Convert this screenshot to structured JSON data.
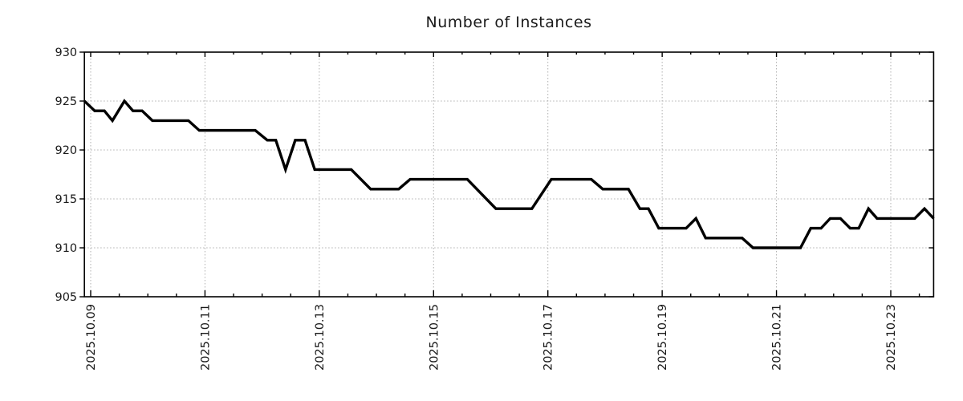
{
  "chart_data": {
    "type": "line",
    "title": "Number of Instances",
    "xlabel": "",
    "ylabel": "",
    "x_tick_labels": [
      "2025.10.09",
      "2025.10.11",
      "2025.10.13",
      "2025.10.15",
      "2025.10.17",
      "2025.10.19",
      "2025.10.21",
      "2025.10.23"
    ],
    "x_tick_days": [
      0,
      2,
      4,
      6,
      8,
      10,
      12,
      14
    ],
    "x_minor_step_days": 0.5,
    "xlim_days": [
      -0.11,
      14.75
    ],
    "y_ticks": [
      905,
      910,
      915,
      920,
      925,
      930
    ],
    "ylim": [
      905,
      930
    ],
    "grid": "dotted",
    "legend_position": "none",
    "colors": {
      "line": "#000000",
      "grid": "#b0b0b0",
      "text": "#1a1a1a",
      "background": "#ffffff"
    },
    "series": [
      {
        "name": "Number of Instances",
        "points_format": "[days_since_2025.10.09, value]",
        "points": [
          [
            -0.11,
            925
          ],
          [
            0.07,
            924
          ],
          [
            0.24,
            924
          ],
          [
            0.38,
            923
          ],
          [
            0.59,
            925
          ],
          [
            0.74,
            924
          ],
          [
            0.9,
            924
          ],
          [
            1.08,
            923
          ],
          [
            1.71,
            923
          ],
          [
            1.9,
            922
          ],
          [
            2.88,
            922
          ],
          [
            3.09,
            921
          ],
          [
            3.24,
            921
          ],
          [
            3.41,
            918
          ],
          [
            3.58,
            921
          ],
          [
            3.75,
            921
          ],
          [
            3.92,
            918
          ],
          [
            4.56,
            918
          ],
          [
            4.9,
            916
          ],
          [
            5.39,
            916
          ],
          [
            5.59,
            917
          ],
          [
            6.59,
            917
          ],
          [
            7.09,
            914
          ],
          [
            7.72,
            914
          ],
          [
            8.06,
            917
          ],
          [
            8.76,
            917
          ],
          [
            8.96,
            916
          ],
          [
            9.41,
            916
          ],
          [
            9.61,
            914
          ],
          [
            9.76,
            914
          ],
          [
            9.94,
            912
          ],
          [
            10.42,
            912
          ],
          [
            10.59,
            913
          ],
          [
            10.76,
            911
          ],
          [
            11.4,
            911
          ],
          [
            11.59,
            910
          ],
          [
            12.42,
            910
          ],
          [
            12.6,
            912
          ],
          [
            12.78,
            912
          ],
          [
            12.94,
            913
          ],
          [
            13.12,
            913
          ],
          [
            13.29,
            912
          ],
          [
            13.44,
            912
          ],
          [
            13.61,
            914
          ],
          [
            13.76,
            913
          ],
          [
            14.42,
            913
          ],
          [
            14.59,
            914
          ],
          [
            14.75,
            913
          ]
        ]
      }
    ]
  }
}
